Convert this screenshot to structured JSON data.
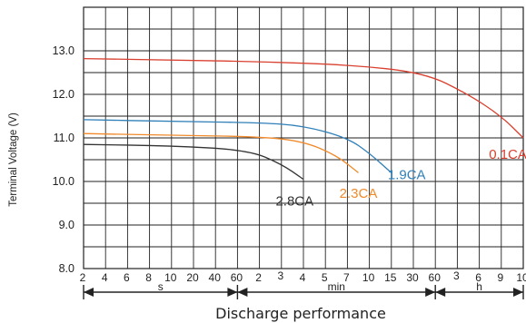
{
  "chart_data": {
    "type": "line",
    "title": "",
    "xlabel": "Discharge performance",
    "ylabel": "Terminal Voltage (V)",
    "ylim": [
      8.0,
      14.0
    ],
    "y_ticks": [
      "8.0",
      "9.0",
      "10.0",
      "11.0",
      "12.0",
      "13.0"
    ],
    "x_scale": "log (discharge time)",
    "x_ticks": [
      "2",
      "4",
      "6",
      "8",
      "10",
      "20",
      "40",
      "60",
      "2",
      "3",
      "4",
      "5",
      "7",
      "10",
      "15",
      "30",
      "60",
      "3",
      "6",
      "9",
      "10"
    ],
    "x_units": [
      {
        "label": "s"
      },
      {
        "label": "min"
      },
      {
        "label": "h"
      }
    ],
    "grid": true,
    "series": [
      {
        "name": "0.1CA",
        "color": "#d9402f",
        "points": [
          [
            0,
            12.82
          ],
          [
            4,
            12.79
          ],
          [
            8,
            12.75
          ],
          [
            12,
            12.68
          ],
          [
            15.5,
            12.5
          ],
          [
            17.5,
            12.0
          ],
          [
            19,
            11.5
          ],
          [
            20,
            11.0
          ]
        ]
      },
      {
        "name": "1.9CA",
        "color": "#2f7fb8",
        "points": [
          [
            0,
            11.42
          ],
          [
            4,
            11.38
          ],
          [
            8,
            11.35
          ],
          [
            10,
            11.28
          ],
          [
            12,
            11.0
          ],
          [
            13,
            10.65
          ],
          [
            14,
            10.2
          ]
        ]
      },
      {
        "name": "2.3CA",
        "color": "#f08a2b",
        "points": [
          [
            0,
            11.1
          ],
          [
            4,
            11.06
          ],
          [
            8,
            11.03
          ],
          [
            10,
            10.92
          ],
          [
            11.5,
            10.6
          ],
          [
            12.5,
            10.2
          ]
        ]
      },
      {
        "name": "2.8CA",
        "color": "#333333",
        "points": [
          [
            0,
            10.85
          ],
          [
            4,
            10.82
          ],
          [
            7.5,
            10.72
          ],
          [
            9,
            10.4
          ],
          [
            10,
            10.05
          ]
        ]
      }
    ]
  }
}
